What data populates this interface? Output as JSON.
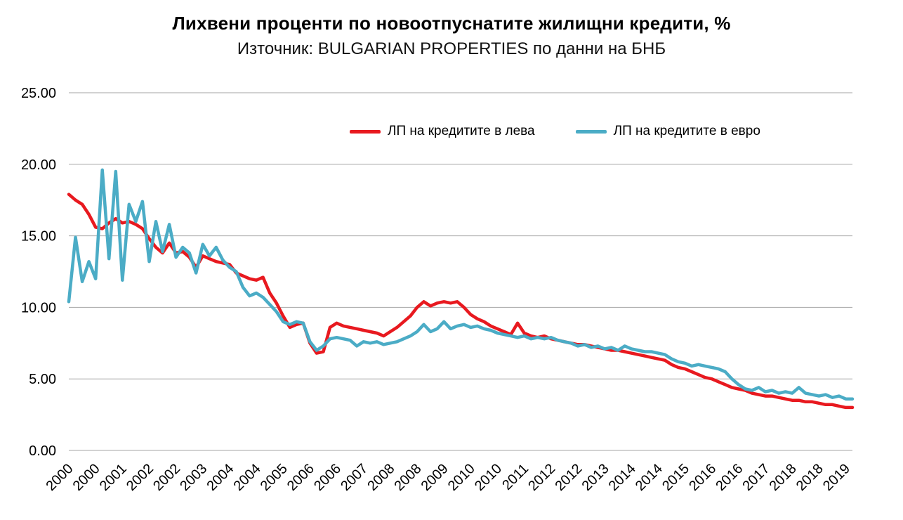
{
  "title": "Лихвени проценти по новоотпуснатите жилищни кредити, %",
  "subtitle": "Източник: BULGARIAN PROPERTIES по данни на БНБ",
  "colors": {
    "series_leva": "#e8191f",
    "series_evro": "#4bacc6",
    "grid": "#a6a6a6",
    "text": "#000000",
    "background": "#ffffff"
  },
  "chart_data": {
    "type": "line",
    "title": "Лихвени проценти по новоотпуснатите жилищни кредити, %",
    "subtitle": "Източник: BULGARIAN PROPERTIES по данни на БНБ",
    "xlabel": "",
    "ylabel": "",
    "ylim": [
      0,
      25
    ],
    "grid": true,
    "legend_position": "top-center-inside",
    "y_ticks": [
      "0.00",
      "5.00",
      "10.00",
      "15.00",
      "20.00",
      "25.00"
    ],
    "x_start": 2000.0,
    "x_step": 0.166667,
    "x_ticks": [
      {
        "pos": 2000.0,
        "label": "2000"
      },
      {
        "pos": 2000.6667,
        "label": "2000"
      },
      {
        "pos": 2001.3333,
        "label": "2001"
      },
      {
        "pos": 2002.0,
        "label": "2002"
      },
      {
        "pos": 2002.6667,
        "label": "2002"
      },
      {
        "pos": 2003.3333,
        "label": "2003"
      },
      {
        "pos": 2004.0,
        "label": "2004"
      },
      {
        "pos": 2004.6667,
        "label": "2004"
      },
      {
        "pos": 2005.3333,
        "label": "2005"
      },
      {
        "pos": 2006.0,
        "label": "2006"
      },
      {
        "pos": 2006.6667,
        "label": "2006"
      },
      {
        "pos": 2007.3333,
        "label": "2007"
      },
      {
        "pos": 2008.0,
        "label": "2008"
      },
      {
        "pos": 2008.6667,
        "label": "2008"
      },
      {
        "pos": 2009.3333,
        "label": "2009"
      },
      {
        "pos": 2010.0,
        "label": "2010"
      },
      {
        "pos": 2010.6667,
        "label": "2010"
      },
      {
        "pos": 2011.3333,
        "label": "2011"
      },
      {
        "pos": 2012.0,
        "label": "2012"
      },
      {
        "pos": 2012.6667,
        "label": "2012"
      },
      {
        "pos": 2013.3333,
        "label": "2013"
      },
      {
        "pos": 2014.0,
        "label": "2014"
      },
      {
        "pos": 2014.6667,
        "label": "2014"
      },
      {
        "pos": 2015.3333,
        "label": "2015"
      },
      {
        "pos": 2016.0,
        "label": "2016"
      },
      {
        "pos": 2016.6667,
        "label": "2016"
      },
      {
        "pos": 2017.3333,
        "label": "2017"
      },
      {
        "pos": 2018.0,
        "label": "2018"
      },
      {
        "pos": 2018.6667,
        "label": "2018"
      },
      {
        "pos": 2019.3333,
        "label": "2019"
      }
    ],
    "series": [
      {
        "id": "leva",
        "name": "ЛП на кредитите в лева",
        "color": "#e8191f",
        "values": [
          17.9,
          17.5,
          17.2,
          16.5,
          15.6,
          15.5,
          15.9,
          16.2,
          15.9,
          16.0,
          15.8,
          15.5,
          14.8,
          14.2,
          13.8,
          14.5,
          13.8,
          13.9,
          13.5,
          12.8,
          13.6,
          13.4,
          13.2,
          13.1,
          13.0,
          12.4,
          12.2,
          12.0,
          11.9,
          12.1,
          11.0,
          10.3,
          9.4,
          8.6,
          8.8,
          8.9,
          7.5,
          6.8,
          6.9,
          8.6,
          8.9,
          8.7,
          8.6,
          8.5,
          8.4,
          8.3,
          8.2,
          8.0,
          8.3,
          8.6,
          9.0,
          9.4,
          10.0,
          10.4,
          10.1,
          10.3,
          10.4,
          10.3,
          10.4,
          10.0,
          9.5,
          9.2,
          9.0,
          8.7,
          8.5,
          8.3,
          8.1,
          8.9,
          8.2,
          8.0,
          7.9,
          8.0,
          7.8,
          7.7,
          7.6,
          7.5,
          7.4,
          7.4,
          7.3,
          7.2,
          7.1,
          7.0,
          7.0,
          6.9,
          6.8,
          6.7,
          6.6,
          6.5,
          6.4,
          6.3,
          6.0,
          5.8,
          5.7,
          5.5,
          5.3,
          5.1,
          5.0,
          4.8,
          4.6,
          4.4,
          4.3,
          4.2,
          4.0,
          3.9,
          3.8,
          3.8,
          3.7,
          3.6,
          3.5,
          3.5,
          3.4,
          3.4,
          3.3,
          3.2,
          3.2,
          3.1,
          3.0,
          3.0
        ]
      },
      {
        "id": "evro",
        "name": "ЛП на кредитите в евро",
        "color": "#4bacc6",
        "values": [
          10.4,
          14.9,
          11.8,
          13.2,
          12.0,
          19.6,
          13.4,
          19.5,
          11.9,
          17.2,
          16.0,
          17.4,
          13.2,
          16.0,
          13.9,
          15.8,
          13.5,
          14.2,
          13.8,
          12.4,
          14.4,
          13.6,
          14.2,
          13.3,
          12.8,
          12.5,
          11.4,
          10.8,
          11.0,
          10.7,
          10.2,
          9.7,
          9.0,
          8.8,
          9.0,
          8.9,
          7.6,
          7.0,
          7.3,
          7.8,
          7.9,
          7.8,
          7.7,
          7.3,
          7.6,
          7.5,
          7.6,
          7.4,
          7.5,
          7.6,
          7.8,
          8.0,
          8.3,
          8.8,
          8.3,
          8.5,
          9.0,
          8.5,
          8.7,
          8.8,
          8.6,
          8.7,
          8.5,
          8.4,
          8.2,
          8.1,
          8.0,
          7.9,
          8.0,
          7.8,
          7.9,
          7.8,
          7.9,
          7.7,
          7.6,
          7.5,
          7.3,
          7.4,
          7.2,
          7.3,
          7.1,
          7.2,
          7.0,
          7.3,
          7.1,
          7.0,
          6.9,
          6.9,
          6.8,
          6.7,
          6.4,
          6.2,
          6.1,
          5.9,
          6.0,
          5.9,
          5.8,
          5.7,
          5.5,
          5.0,
          4.6,
          4.3,
          4.2,
          4.4,
          4.1,
          4.2,
          4.0,
          4.1,
          4.0,
          4.4,
          4.0,
          3.9,
          3.8,
          3.9,
          3.7,
          3.8,
          3.6,
          3.6
        ]
      }
    ]
  }
}
